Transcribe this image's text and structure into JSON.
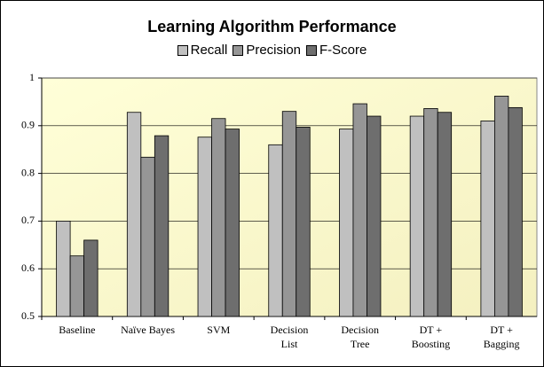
{
  "chart_data": {
    "type": "bar",
    "title": "Learning Algorithm Performance",
    "categories": [
      "Baseline",
      "Naïve Bayes",
      "SVM",
      "Decision\nList",
      "Decision\nTree",
      "DT +\nBoosting",
      "DT +\nBagging"
    ],
    "series": [
      {
        "name": "Recall",
        "color": "#c0c0c0",
        "values": [
          0.7,
          0.928,
          0.876,
          0.86,
          0.893,
          0.92,
          0.91
        ]
      },
      {
        "name": "Precision",
        "color": "#969696",
        "values": [
          0.627,
          0.834,
          0.915,
          0.93,
          0.946,
          0.936,
          0.962
        ]
      },
      {
        "name": "F-Score",
        "color": "#6e6e6e",
        "values": [
          0.66,
          0.879,
          0.893,
          0.897,
          0.92,
          0.928,
          0.938
        ]
      }
    ],
    "ylim": [
      0.5,
      1
    ],
    "yticks": [
      0.5,
      0.6,
      0.7,
      0.8,
      0.9,
      1
    ],
    "grid": true,
    "legend": "top"
  }
}
